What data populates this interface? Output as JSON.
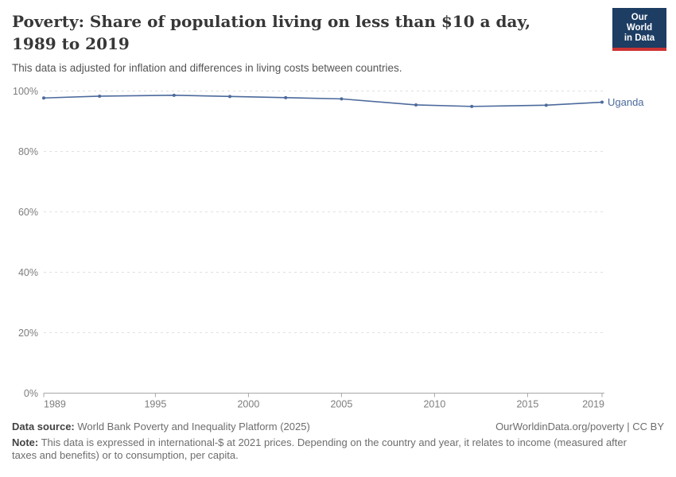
{
  "header": {
    "title": "Poverty: Share of population living on less than $10 a day, 1989 to 2019",
    "subtitle": "This data is adjusted for inflation and differences in living costs between countries.",
    "logo": {
      "line1": "Our World",
      "line2": "in Data",
      "bg_color": "#1d3d63",
      "stripe_color": "#cc3333"
    }
  },
  "chart_data": {
    "type": "line",
    "title": "Poverty: Share of population living on less than $10 a day, 1989 to 2019",
    "series": [
      {
        "name": "Uganda",
        "color": "#4c6a9c",
        "x": [
          1989,
          1992,
          1996,
          1999,
          2002,
          2005,
          2009,
          2012,
          2016,
          2019
        ],
        "values": [
          97.7,
          98.3,
          98.6,
          98.2,
          97.8,
          97.4,
          95.4,
          94.9,
          95.3,
          96.3
        ]
      }
    ],
    "xlabel": "",
    "ylabel": "",
    "xlim": [
      1989,
      2019
    ],
    "ylim": [
      0,
      100
    ],
    "xticks": [
      1989,
      1995,
      2000,
      2005,
      2010,
      2015,
      2019
    ],
    "yticks": [
      0,
      20,
      40,
      60,
      80,
      100
    ],
    "ytick_suffix": "%",
    "grid": "horizontal-dashed",
    "legend_position": "end-of-line-label",
    "axis_color": "#a6a6a6",
    "gridline_color": "#e0e0e0"
  },
  "footer": {
    "datasource_label": "Data source:",
    "datasource_value": " World Bank Poverty and Inequality Platform (2025)",
    "rights": "OurWorldinData.org/poverty | CC BY",
    "note_label": "Note:",
    "note_value": " This data is expressed in international-$ at 2021 prices. Depending on the country and year, it relates to income (measured after taxes and benefits) or to consumption, per capita."
  }
}
